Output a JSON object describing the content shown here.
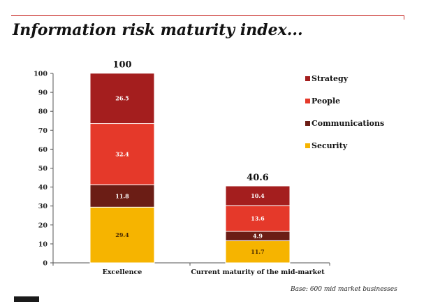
{
  "header": {
    "title": "Information risk maturity index...",
    "base_note": "Base: 600 mid market businesses"
  },
  "chart_data": {
    "type": "bar",
    "stacked": true,
    "title": "Information risk maturity index...",
    "categories": [
      "Excellence",
      "Current maturity of the mid-market"
    ],
    "totals": [
      "100",
      "40.6"
    ],
    "ylim": [
      0,
      100
    ],
    "yticks": [
      0,
      10,
      20,
      30,
      40,
      50,
      60,
      70,
      80,
      90,
      100
    ],
    "legend_position": "right",
    "series": [
      {
        "name": "Security",
        "color": "#f6b400",
        "values": [
          29.4,
          11.7
        ],
        "labels": [
          "29.4",
          "11.7"
        ]
      },
      {
        "name": "Communications",
        "color": "#6b1d15",
        "values": [
          11.8,
          4.9
        ],
        "labels": [
          "11.8",
          "4.9"
        ]
      },
      {
        "name": "People",
        "color": "#e5392a",
        "values": [
          32.4,
          13.6
        ],
        "labels": [
          "32.4",
          "13.6"
        ]
      },
      {
        "name": "Strategy",
        "color": "#a41e1e",
        "values": [
          26.5,
          10.4
        ],
        "labels": [
          "26.5",
          "10.4"
        ]
      }
    ],
    "legend_order": [
      "Strategy",
      "People",
      "Communications",
      "Security"
    ]
  }
}
